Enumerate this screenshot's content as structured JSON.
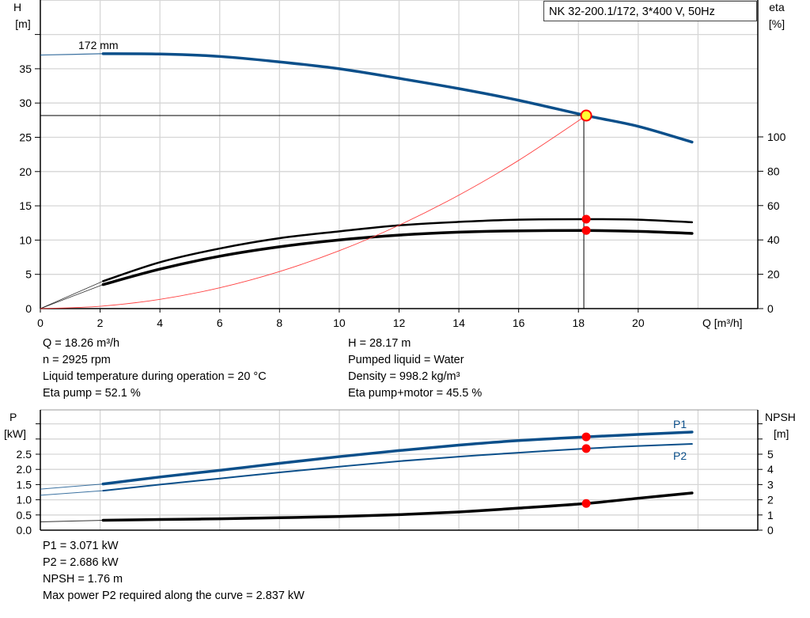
{
  "chart_data": [
    {
      "type": "line",
      "title": "NK 32-200.1/172, 3*400 V, 50Hz",
      "xlabel": "Q [m³/h]",
      "ylabel_left": [
        "H",
        "[m]"
      ],
      "ylabel_right": [
        "eta",
        "[%]"
      ],
      "xlim": [
        0,
        24
      ],
      "ylim_left": [
        0,
        45
      ],
      "ylim_right": [
        0,
        207
      ],
      "x_ticks": [
        "0",
        "2",
        "4",
        "6",
        "8",
        "10",
        "12",
        "14",
        "16",
        "18",
        "20"
      ],
      "y_ticks_left": [
        "0",
        "5",
        "10",
        "15",
        "20",
        "25",
        "30",
        "35"
      ],
      "y_ticks_right": [
        "0",
        "20",
        "40",
        "60",
        "80",
        "100"
      ],
      "grid": true,
      "curve_label": "172 mm",
      "series": [
        {
          "id": "head",
          "axis": "left",
          "color": "#0b4f8a",
          "x": [
            0,
            2.1,
            4,
            6,
            8,
            10,
            12,
            14,
            16,
            18.26,
            20,
            21.8
          ],
          "y": [
            37.0,
            37.2,
            37.15,
            36.8,
            36.0,
            35.0,
            33.6,
            32.1,
            30.4,
            28.17,
            26.6,
            24.3
          ]
        },
        {
          "id": "eta-pump",
          "axis": "right",
          "color": "#000000",
          "x": [
            0,
            2.1,
            4,
            6,
            8,
            10,
            12,
            14,
            16,
            18.26,
            20,
            21.8
          ],
          "y": [
            0,
            16,
            27,
            35,
            41,
            45,
            48.5,
            50.5,
            51.8,
            52.1,
            51.8,
            50.3
          ]
        },
        {
          "id": "eta-pump-motor",
          "axis": "right",
          "color": "#000000",
          "x": [
            0,
            2.1,
            4,
            6,
            8,
            10,
            12,
            14,
            16,
            18.26,
            20,
            21.8
          ],
          "y": [
            0,
            14,
            23,
            30.5,
            36,
            40,
            42.8,
            44.5,
            45.3,
            45.5,
            45,
            43.8
          ]
        },
        {
          "id": "system-curve",
          "axis": "left",
          "color": "#ff4040",
          "x": [
            0,
            2,
            4,
            6,
            8,
            10,
            12,
            14,
            16,
            18.26
          ],
          "y": [
            0,
            0.34,
            1.35,
            3.04,
            5.41,
            8.45,
            12.17,
            16.56,
            21.63,
            28.17
          ]
        }
      ],
      "operating_point": {
        "Q": 18.26,
        "H": 28.17,
        "eta_pump": 52.1,
        "eta_pump_motor": 45.5
      }
    },
    {
      "type": "line",
      "xlim": [
        0,
        24
      ],
      "ylabel_left": [
        "P",
        "[kW]"
      ],
      "ylabel_right": [
        "NPSH",
        "[m]"
      ],
      "ylim_left": [
        0,
        3.96
      ],
      "ylim_right": [
        0,
        7.92
      ],
      "y_ticks_left": [
        "0.0",
        "0.5",
        "1.0",
        "1.5",
        "2.0",
        "2.5"
      ],
      "y_ticks_right": [
        "0",
        "1",
        "2",
        "3",
        "4",
        "5"
      ],
      "grid": true,
      "series": [
        {
          "id": "P1",
          "name": "P1",
          "axis": "left",
          "color": "#0b4f8a",
          "x": [
            0,
            2.1,
            4,
            6,
            8,
            10,
            12,
            14,
            16,
            18.26,
            20,
            21.8
          ],
          "y": [
            1.35,
            1.52,
            1.75,
            1.97,
            2.2,
            2.42,
            2.62,
            2.8,
            2.95,
            3.071,
            3.15,
            3.23
          ]
        },
        {
          "id": "P2",
          "name": "P2",
          "axis": "left",
          "color": "#0b4f8a",
          "x": [
            0,
            2.1,
            4,
            6,
            8,
            10,
            12,
            14,
            16,
            18.26,
            20,
            21.8
          ],
          "y": [
            1.15,
            1.3,
            1.5,
            1.7,
            1.9,
            2.09,
            2.27,
            2.42,
            2.55,
            2.686,
            2.77,
            2.837
          ]
        },
        {
          "id": "NPSH",
          "axis": "right",
          "color": "#000000",
          "x": [
            0,
            2.1,
            4,
            6,
            8,
            10,
            12,
            14,
            16,
            18.26,
            20,
            21.8
          ],
          "y": [
            0.55,
            0.65,
            0.7,
            0.75,
            0.82,
            0.9,
            1.02,
            1.2,
            1.45,
            1.76,
            2.1,
            2.45
          ]
        }
      ],
      "operating_point": {
        "Q": 18.26,
        "P1": 3.071,
        "P2": 2.686,
        "NPSH": 1.76
      }
    }
  ],
  "info_top_left": [
    "Q = 18.26 m³/h",
    "n = 2925 rpm",
    "Liquid temperature during operation = 20 °C",
    "Eta pump = 52.1 %"
  ],
  "info_top_right": [
    "H = 28.17 m",
    "Pumped liquid = Water",
    "Density = 998.2 kg/m³",
    "Eta pump+motor = 45.5 %"
  ],
  "info_bottom": [
    "P1 = 3.071 kW",
    "P2 = 2.686 kW",
    "NPSH = 1.76 m",
    "Max power P2 required along the curve = 2.837 kW"
  ]
}
